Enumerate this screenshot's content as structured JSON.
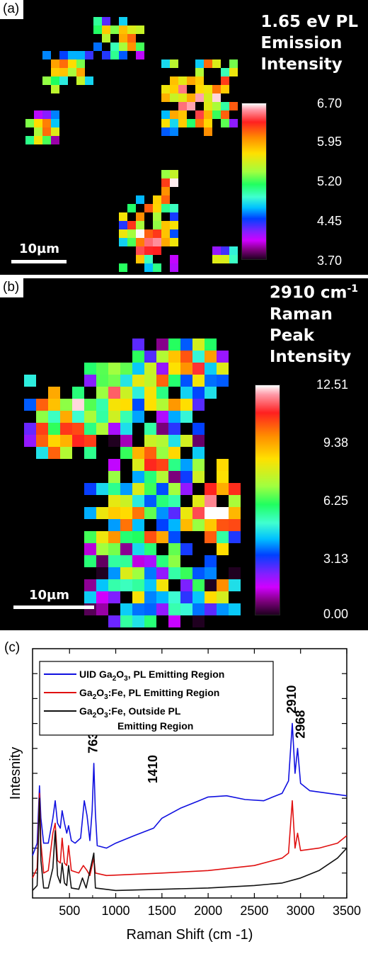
{
  "panel_a": {
    "label": "(a)",
    "title_lines": [
      "1.65 eV PL",
      "Emission",
      "Intensity"
    ],
    "colorbar_ticks": [
      "6.70",
      "5.95",
      "5.20",
      "4.45",
      "3.70"
    ],
    "scale_bar_label": "10µm"
  },
  "panel_b": {
    "label": "(b)",
    "title_line1": "2910 cm",
    "title_line1_sup": "-1",
    "title_lines_rest": [
      "Raman",
      "Peak",
      "Intensity"
    ],
    "colorbar_ticks": [
      "12.51",
      "9.38",
      "6.25",
      "3.13",
      "0.00"
    ],
    "scale_bar_label": "10µm"
  },
  "panel_c": {
    "label": "(c)"
  },
  "chart_data": [
    {
      "type": "heatmap",
      "title": "1.65 eV PL Emission Intensity",
      "value_range": [
        3.7,
        6.7
      ],
      "colorbar_ticks": [
        6.7,
        5.95,
        5.2,
        4.45,
        3.7
      ]
    },
    {
      "type": "heatmap",
      "title": "2910 cm-1 Raman Peak Intensity",
      "value_range": [
        0.0,
        12.51
      ],
      "colorbar_ticks": [
        12.51,
        9.38,
        6.25,
        3.13,
        0.0
      ]
    },
    {
      "type": "line",
      "xlabel": "Raman Shift (cm -1)",
      "ylabel": "Intesnity",
      "xlim": [
        100,
        3500
      ],
      "ylim": [
        0,
        10
      ],
      "xticks": [
        500,
        1000,
        1500,
        2000,
        2500,
        3000,
        3500
      ],
      "legend_position": "top-left",
      "annotations": [
        {
          "text": "763",
          "x": 763
        },
        {
          "text": "1410",
          "x": 1410
        },
        {
          "text": "2910",
          "x": 2910
        },
        {
          "text": "2968",
          "x": 2968
        }
      ],
      "series": [
        {
          "name": "UID Ga2O3, PL Emitting Region",
          "color": "#1010e0",
          "points": [
            [
              100,
              1.7
            ],
            [
              150,
              2.2
            ],
            [
              175,
              4.5
            ],
            [
              190,
              3.2
            ],
            [
              220,
              2.2
            ],
            [
              270,
              2.2
            ],
            [
              320,
              3.2
            ],
            [
              345,
              3.9
            ],
            [
              370,
              3.0
            ],
            [
              400,
              2.8
            ],
            [
              420,
              3.5
            ],
            [
              445,
              3.0
            ],
            [
              470,
              2.6
            ],
            [
              490,
              2.9
            ],
            [
              520,
              2.3
            ],
            [
              560,
              2.2
            ],
            [
              620,
              2.4
            ],
            [
              660,
              3.9
            ],
            [
              690,
              3.3
            ],
            [
              720,
              2.3
            ],
            [
              745,
              3.5
            ],
            [
              763,
              5.4
            ],
            [
              780,
              3.4
            ],
            [
              800,
              2.1
            ],
            [
              900,
              2.0
            ],
            [
              1000,
              2.2
            ],
            [
              1200,
              2.5
            ],
            [
              1410,
              2.8
            ],
            [
              1500,
              3.2
            ],
            [
              1700,
              3.6
            ],
            [
              1900,
              3.9
            ],
            [
              2000,
              4.05
            ],
            [
              2200,
              4.1
            ],
            [
              2400,
              3.95
            ],
            [
              2600,
              3.9
            ],
            [
              2700,
              4.05
            ],
            [
              2800,
              4.2
            ],
            [
              2870,
              4.7
            ],
            [
              2910,
              7.0
            ],
            [
              2940,
              5.0
            ],
            [
              2968,
              6.0
            ],
            [
              3000,
              4.6
            ],
            [
              3100,
              4.3
            ],
            [
              3300,
              4.2
            ],
            [
              3500,
              4.1
            ]
          ]
        },
        {
          "name": "Ga2O3:Fe, PL Emitting Region",
          "color": "#e01010",
          "points": [
            [
              100,
              0.8
            ],
            [
              150,
              1.2
            ],
            [
              175,
              4.2
            ],
            [
              190,
              2.2
            ],
            [
              220,
              1.0
            ],
            [
              270,
              1.1
            ],
            [
              320,
              2.6
            ],
            [
              345,
              3.0
            ],
            [
              370,
              1.5
            ],
            [
              400,
              1.4
            ],
            [
              420,
              2.4
            ],
            [
              445,
              1.4
            ],
            [
              470,
              1.3
            ],
            [
              490,
              2.1
            ],
            [
              520,
              1.1
            ],
            [
              600,
              1.0
            ],
            [
              650,
              1.3
            ],
            [
              690,
              1.1
            ],
            [
              720,
              0.9
            ],
            [
              763,
              1.6
            ],
            [
              780,
              1.0
            ],
            [
              900,
              0.9
            ],
            [
              1200,
              0.95
            ],
            [
              1500,
              1.0
            ],
            [
              2000,
              1.1
            ],
            [
              2500,
              1.3
            ],
            [
              2800,
              1.6
            ],
            [
              2870,
              1.8
            ],
            [
              2910,
              3.9
            ],
            [
              2940,
              2.0
            ],
            [
              2968,
              2.6
            ],
            [
              3000,
              1.9
            ],
            [
              3200,
              2.0
            ],
            [
              3400,
              2.2
            ],
            [
              3500,
              2.5
            ]
          ]
        },
        {
          "name": "Ga2O3:Fe, Outside PL Emitting Region",
          "color": "#111111",
          "points": [
            [
              100,
              0.3
            ],
            [
              150,
              0.5
            ],
            [
              175,
              4.0
            ],
            [
              190,
              1.5
            ],
            [
              220,
              0.4
            ],
            [
              270,
              0.4
            ],
            [
              320,
              1.2
            ],
            [
              345,
              2.7
            ],
            [
              370,
              0.9
            ],
            [
              400,
              0.6
            ],
            [
              420,
              1.4
            ],
            [
              445,
              0.6
            ],
            [
              470,
              0.5
            ],
            [
              490,
              1.3
            ],
            [
              520,
              0.4
            ],
            [
              600,
              0.35
            ],
            [
              640,
              0.8
            ],
            [
              680,
              0.4
            ],
            [
              763,
              1.8
            ],
            [
              780,
              0.4
            ],
            [
              1000,
              0.3
            ],
            [
              1500,
              0.35
            ],
            [
              2000,
              0.4
            ],
            [
              2500,
              0.5
            ],
            [
              2800,
              0.6
            ],
            [
              3000,
              0.8
            ],
            [
              3200,
              1.1
            ],
            [
              3400,
              1.6
            ],
            [
              3500,
              2.0
            ]
          ]
        }
      ]
    }
  ]
}
